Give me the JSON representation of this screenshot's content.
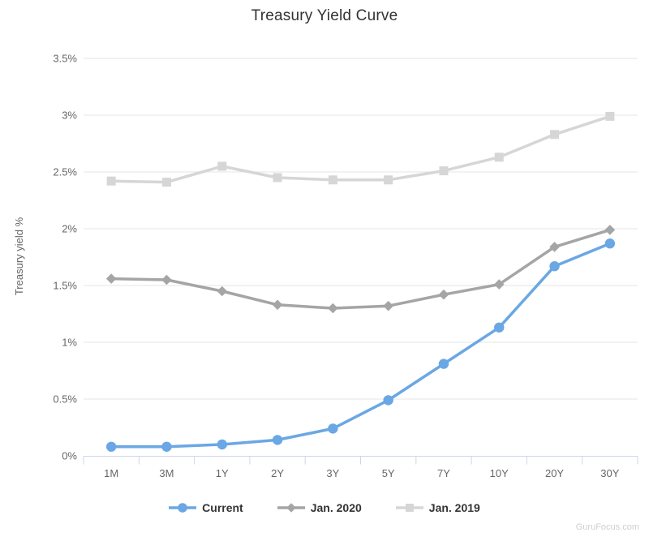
{
  "title": "Treasury Yield Curve",
  "watermark": "GuruFocus.com",
  "colors": {
    "background": "#FFFFFF",
    "title_text": "#333333",
    "tick_text": "#666666",
    "axis_title_text": "#666666",
    "legend_text": "#333333",
    "grid": "#E6E6E6",
    "axis_line": "#CCD6EB",
    "watermark_text": "#CFCFCF"
  },
  "chart_data": {
    "type": "line",
    "title": "Treasury Yield Curve",
    "xlabel": "",
    "ylabel": "Treasury yield %",
    "categories": [
      "1M",
      "3M",
      "1Y",
      "2Y",
      "3Y",
      "5Y",
      "7Y",
      "10Y",
      "20Y",
      "30Y"
    ],
    "ylim": [
      0,
      3.5
    ],
    "yticks": {
      "values": [
        0,
        0.5,
        1,
        1.5,
        2,
        2.5,
        3,
        3.5
      ],
      "labels": [
        "0%",
        "0.5%",
        "1%",
        "1.5%",
        "2%",
        "2.5%",
        "3%",
        "3.5%"
      ]
    },
    "grid": true,
    "legend_position": "bottom",
    "series": [
      {
        "name": "Current",
        "color": "#6AA7E4",
        "marker": "circle",
        "values": [
          0.08,
          0.08,
          0.1,
          0.14,
          0.24,
          0.49,
          0.81,
          1.13,
          1.67,
          1.87
        ]
      },
      {
        "name": "Jan. 2020",
        "color": "#A5A5A5",
        "marker": "diamond",
        "values": [
          1.56,
          1.55,
          1.45,
          1.33,
          1.3,
          1.32,
          1.42,
          1.51,
          1.84,
          1.99
        ]
      },
      {
        "name": "Jan. 2019",
        "color": "#D6D6D6",
        "marker": "square",
        "values": [
          2.42,
          2.41,
          2.55,
          2.45,
          2.43,
          2.43,
          2.51,
          2.63,
          2.83,
          2.99
        ]
      }
    ]
  }
}
